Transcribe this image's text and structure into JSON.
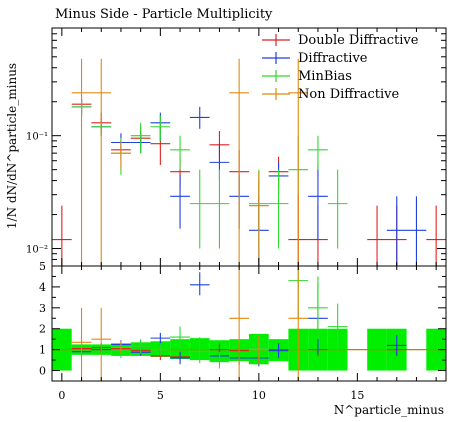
{
  "chart_data": [
    {
      "type": "scatter",
      "title": "Minus Side - Particle Multiplicity",
      "ylabel": "1/N dN/dN^particle_minus",
      "yscale": "log",
      "ylim": [
        0.007,
        0.9
      ],
      "xlim": [
        -0.5,
        19.5
      ],
      "x_ticks": [
        0,
        5,
        10,
        15
      ],
      "y_tick_labels": [
        {
          "value": 0.01,
          "text": "10⁻²"
        },
        {
          "value": 0.1,
          "text": "10⁻¹"
        }
      ],
      "legend_position": "top-right",
      "series": [
        {
          "name": "Double Diffractive",
          "color": "#e02020",
          "points": [
            {
              "x": 0,
              "y": 0.012,
              "lo": 0.007,
              "hi": 0.024
            },
            {
              "x": 1,
              "y": 0.19,
              "lo": 0.16,
              "hi": 0.22
            },
            {
              "x": 2,
              "y": 0.13,
              "lo": 0.11,
              "hi": 0.16
            },
            {
              "x": 3,
              "y": 0.075,
              "lo": 0.06,
              "hi": 0.09
            },
            {
              "x": 4,
              "y": 0.095,
              "lo": 0.075,
              "hi": 0.12
            },
            {
              "x": 5,
              "y": 0.085,
              "lo": 0.055,
              "hi": 0.12
            },
            {
              "x": 6,
              "y": 0.048,
              "lo": 0.035,
              "hi": 0.065
            },
            {
              "x": 8,
              "y": 0.083,
              "lo": 0.065,
              "hi": 0.11
            },
            {
              "x": 9,
              "y": 0.048,
              "lo": 0.03,
              "hi": 0.075
            },
            {
              "x": 10,
              "y": 0.024,
              "lo": 0.015,
              "hi": 0.04
            },
            {
              "x": 11,
              "y": 0.048,
              "lo": 0.035,
              "hi": 0.065
            },
            {
              "x": 12,
              "y": 0.012,
              "lo": 0.007,
              "hi": 0.03
            },
            {
              "x": 13,
              "y": 0.012,
              "lo": 0.007,
              "hi": 0.024
            },
            {
              "x": 16,
              "y": 0.012,
              "lo": 0.007,
              "hi": 0.024
            },
            {
              "x": 17,
              "y": 0.012,
              "lo": 0.007,
              "hi": 0.024
            },
            {
              "x": 19,
              "y": 0.012,
              "lo": 0.007,
              "hi": 0.024
            }
          ]
        },
        {
          "name": "Diffractive",
          "color": "#2040e0",
          "points": [
            {
              "x": 1,
              "y": 0.18,
              "lo": 0.15,
              "hi": 0.21
            },
            {
              "x": 2,
              "y": 0.12,
              "lo": 0.1,
              "hi": 0.14
            },
            {
              "x": 3,
              "y": 0.087,
              "lo": 0.07,
              "hi": 0.105
            },
            {
              "x": 4,
              "y": 0.087,
              "lo": 0.07,
              "hi": 0.105
            },
            {
              "x": 5,
              "y": 0.13,
              "lo": 0.09,
              "hi": 0.16
            },
            {
              "x": 6,
              "y": 0.029,
              "lo": 0.015,
              "hi": 0.045
            },
            {
              "x": 7,
              "y": 0.145,
              "lo": 0.115,
              "hi": 0.18
            },
            {
              "x": 8,
              "y": 0.058,
              "lo": 0.04,
              "hi": 0.085
            },
            {
              "x": 9,
              "y": 0.029,
              "lo": 0.015,
              "hi": 0.045
            },
            {
              "x": 10,
              "y": 0.0145,
              "lo": 0.007,
              "hi": 0.029
            },
            {
              "x": 11,
              "y": 0.044,
              "lo": 0.03,
              "hi": 0.058
            },
            {
              "x": 13,
              "y": 0.029,
              "lo": 0.012,
              "hi": 0.058
            },
            {
              "x": 17,
              "y": 0.0145,
              "lo": 0.007,
              "hi": 0.029
            },
            {
              "x": 18,
              "y": 0.0145,
              "lo": 0.007,
              "hi": 0.029
            }
          ]
        },
        {
          "name": "MinBias",
          "color": "#30d830",
          "points": [
            {
              "x": 1,
              "y": 0.18,
              "lo": 0.15,
              "hi": 0.21
            },
            {
              "x": 2,
              "y": 0.12,
              "lo": 0.1,
              "hi": 0.14
            },
            {
              "x": 3,
              "y": 0.07,
              "lo": 0.045,
              "hi": 0.095
            },
            {
              "x": 4,
              "y": 0.1,
              "lo": 0.07,
              "hi": 0.13
            },
            {
              "x": 5,
              "y": 0.12,
              "lo": 0.09,
              "hi": 0.15
            },
            {
              "x": 6,
              "y": 0.075,
              "lo": 0.05,
              "hi": 0.1
            },
            {
              "x": 7,
              "y": 0.025,
              "lo": 0.01,
              "hi": 0.05
            },
            {
              "x": 8,
              "y": 0.025,
              "lo": 0.01,
              "hi": 0.05
            },
            {
              "x": 10,
              "y": 0.025,
              "lo": 0.01,
              "hi": 0.05
            },
            {
              "x": 11,
              "y": 0.025,
              "lo": 0.01,
              "hi": 0.05
            },
            {
              "x": 12,
              "y": 0.05,
              "lo": 0.03,
              "hi": 0.1
            },
            {
              "x": 13,
              "y": 0.075,
              "lo": 0.05,
              "hi": 0.1
            },
            {
              "x": 14,
              "y": 0.025,
              "lo": 0.01,
              "hi": 0.05
            }
          ]
        },
        {
          "name": "Non Diffractive",
          "color": "#e08a10",
          "points": [
            {
              "x": 1,
              "y": 0.24,
              "lo": 0.007,
              "hi": 0.48
            },
            {
              "x": 2,
              "y": 0.24,
              "lo": 0.007,
              "hi": 0.48
            },
            {
              "x": 3,
              "y": 0.07,
              "lo": 0.05,
              "hi": 0.09
            },
            {
              "x": 9,
              "y": 0.24,
              "lo": 0.007,
              "hi": 0.48
            },
            {
              "x": 10,
              "y": 0.024,
              "lo": 0.007,
              "hi": 0.048
            },
            {
              "x": 12,
              "y": 0.24,
              "lo": 0.007,
              "hi": 0.48
            }
          ]
        }
      ]
    },
    {
      "type": "scatter",
      "title": "",
      "xlabel": "N^particle_minus",
      "ylabel": "",
      "ylim": [
        -0.5,
        5
      ],
      "xlim": [
        -0.5,
        19.5
      ],
      "x_ticks": [
        0,
        5,
        10,
        15
      ],
      "y_ticks": [
        0,
        1,
        2,
        3,
        4,
        5
      ],
      "reference_line": 1,
      "band_color": "#00ee00",
      "band": [
        {
          "x": 0,
          "lo": 0.0,
          "hi": 2.0
        },
        {
          "x": 1,
          "lo": 0.75,
          "hi": 1.25
        },
        {
          "x": 2,
          "lo": 0.75,
          "hi": 1.25
        },
        {
          "x": 3,
          "lo": 0.7,
          "hi": 1.3
        },
        {
          "x": 4,
          "lo": 0.7,
          "hi": 1.35
        },
        {
          "x": 5,
          "lo": 0.65,
          "hi": 1.4
        },
        {
          "x": 6,
          "lo": 0.55,
          "hi": 1.5
        },
        {
          "x": 7,
          "lo": 0.5,
          "hi": 1.55
        },
        {
          "x": 8,
          "lo": 0.4,
          "hi": 1.45
        },
        {
          "x": 9,
          "lo": 0.45,
          "hi": 1.5
        },
        {
          "x": 10,
          "lo": 0.3,
          "hi": 1.75
        },
        {
          "x": 11,
          "lo": 0.45,
          "hi": 1.5
        },
        {
          "x": 12,
          "lo": 0.0,
          "hi": 2.0
        },
        {
          "x": 13,
          "lo": 0.0,
          "hi": 2.0
        },
        {
          "x": 14,
          "lo": 0.0,
          "hi": 2.0
        },
        {
          "x": 16,
          "lo": 0.0,
          "hi": 2.0
        },
        {
          "x": 17,
          "lo": 0.0,
          "hi": 2.0
        },
        {
          "x": 19,
          "lo": 0.0,
          "hi": 2.0
        }
      ],
      "series": [
        {
          "name": "Double Diffractive",
          "color": "#e02020",
          "points": [
            {
              "x": 1,
              "y": 1.05,
              "lo": 0.85,
              "hi": 1.25
            },
            {
              "x": 2,
              "y": 1.1,
              "lo": 0.9,
              "hi": 1.3
            },
            {
              "x": 3,
              "y": 1.05,
              "lo": 0.8,
              "hi": 1.3
            },
            {
              "x": 4,
              "y": 0.95,
              "lo": 0.75,
              "hi": 1.15
            },
            {
              "x": 5,
              "y": 0.7,
              "lo": 0.5,
              "hi": 0.95
            },
            {
              "x": 6,
              "y": 0.65,
              "lo": 0.45,
              "hi": 0.85
            },
            {
              "x": 8,
              "y": 1.0,
              "lo": 0.7,
              "hi": 1.3
            },
            {
              "x": 9,
              "y": 0.95,
              "lo": 0.6,
              "hi": 1.3
            },
            {
              "x": 11,
              "y": 1.0,
              "lo": 0.7,
              "hi": 1.3
            },
            {
              "x": 13,
              "y": 1.0,
              "lo": 0.7,
              "hi": 1.3
            },
            {
              "x": 17,
              "y": 1.0,
              "lo": 0.8,
              "hi": 1.2
            }
          ]
        },
        {
          "name": "Diffractive",
          "color": "#2040e0",
          "points": [
            {
              "x": 1,
              "y": 0.9,
              "lo": 0.75,
              "hi": 1.05
            },
            {
              "x": 2,
              "y": 1.0,
              "lo": 0.85,
              "hi": 1.15
            },
            {
              "x": 3,
              "y": 1.25,
              "lo": 1.05,
              "hi": 1.45
            },
            {
              "x": 4,
              "y": 0.87,
              "lo": 0.7,
              "hi": 1.05
            },
            {
              "x": 5,
              "y": 1.55,
              "lo": 1.2,
              "hi": 1.8
            },
            {
              "x": 6,
              "y": 0.6,
              "lo": 0.3,
              "hi": 0.9
            },
            {
              "x": 7,
              "y": 4.1,
              "lo": 3.6,
              "hi": 4.7
            },
            {
              "x": 8,
              "y": 0.7,
              "lo": 0.45,
              "hi": 1.0
            },
            {
              "x": 9,
              "y": 0.6,
              "lo": 0.3,
              "hi": 0.9
            },
            {
              "x": 10,
              "y": 0.6,
              "lo": 0.2,
              "hi": 1.0
            },
            {
              "x": 11,
              "y": 0.95,
              "lo": 0.6,
              "hi": 1.3
            },
            {
              "x": 13,
              "y": 2.5,
              "lo": 0.8,
              "hi": 4.2
            },
            {
              "x": 17,
              "y": 1.2,
              "lo": 0.7,
              "hi": 1.7
            }
          ]
        },
        {
          "name": "MinBias",
          "color": "#30d830",
          "points": [
            {
              "x": 3,
              "y": 0.95,
              "lo": 0.6,
              "hi": 1.3
            },
            {
              "x": 4,
              "y": 1.15,
              "lo": 0.8,
              "hi": 1.5
            },
            {
              "x": 5,
              "y": 1.0,
              "lo": 0.7,
              "hi": 1.3
            },
            {
              "x": 6,
              "y": 1.6,
              "lo": 1.1,
              "hi": 2.1
            },
            {
              "x": 7,
              "y": 0.9,
              "lo": 0.35,
              "hi": 1.6
            },
            {
              "x": 8,
              "y": 0.45,
              "lo": 0.1,
              "hi": 0.9
            },
            {
              "x": 10,
              "y": 1.05,
              "lo": 0.5,
              "hi": 1.7
            },
            {
              "x": 12,
              "y": 4.3,
              "lo": 2.5,
              "hi": 5.0
            },
            {
              "x": 13,
              "y": 3.0,
              "lo": 1.5,
              "hi": 4.5
            },
            {
              "x": 14,
              "y": 2.1,
              "lo": 1.0,
              "hi": 3.2
            }
          ]
        },
        {
          "name": "Non Diffractive",
          "color": "#e08a10",
          "points": [
            {
              "x": 1,
              "y": 1.35,
              "lo": -0.5,
              "hi": 3.0
            },
            {
              "x": 2,
              "y": 1.5,
              "lo": -0.5,
              "hi": 3.0
            },
            {
              "x": 3,
              "y": 1.1,
              "lo": 0.8,
              "hi": 1.4
            },
            {
              "x": 9,
              "y": 2.5,
              "lo": -0.5,
              "hi": 5.0
            },
            {
              "x": 10,
              "y": 1.0,
              "lo": 0.3,
              "hi": 1.7
            },
            {
              "x": 12,
              "y": 2.5,
              "lo": -0.5,
              "hi": 5.0
            }
          ]
        }
      ]
    }
  ]
}
